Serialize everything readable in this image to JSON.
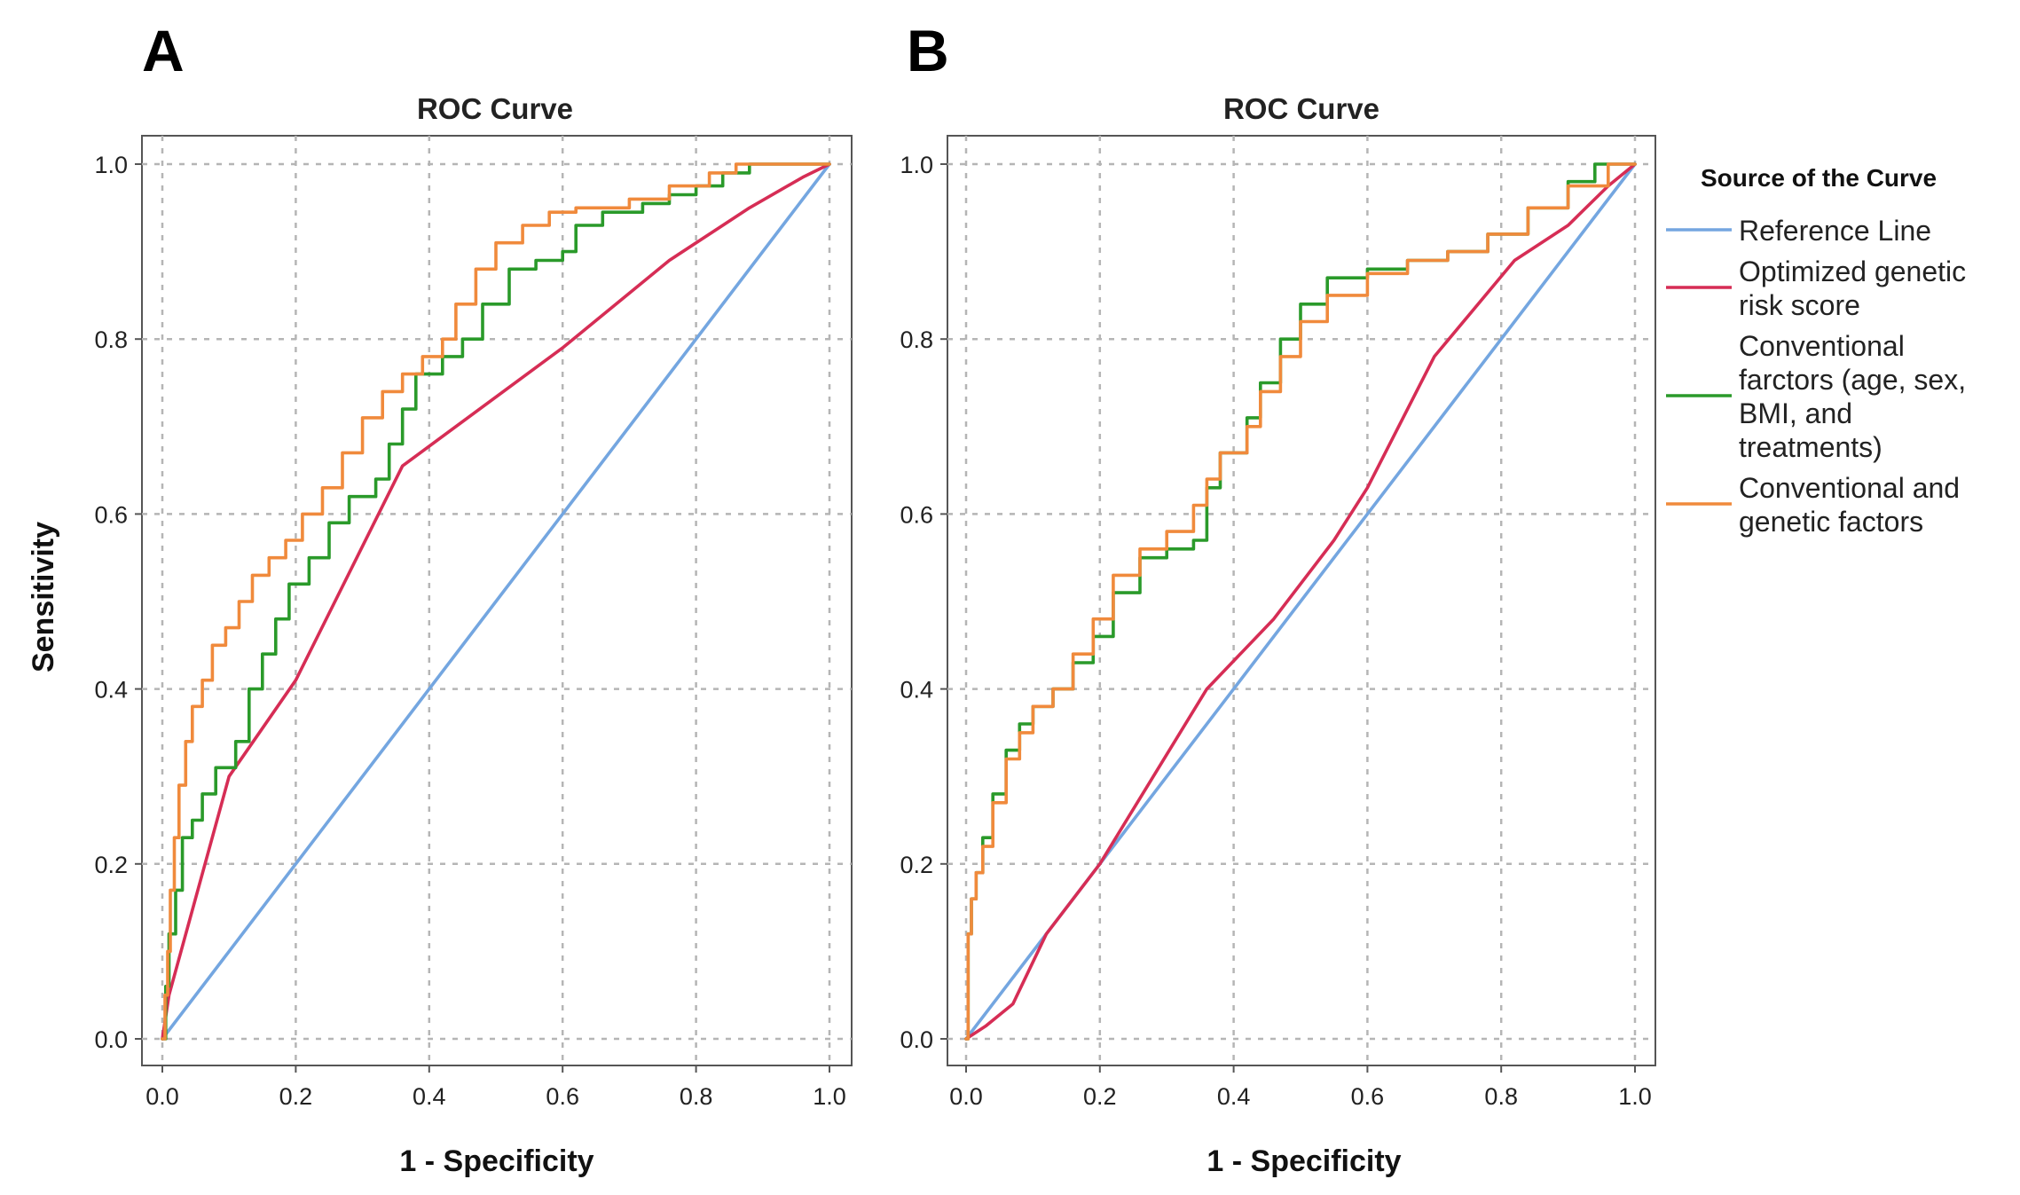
{
  "colors": {
    "reference": "#74a6e0",
    "genetic": "#d62d55",
    "conventional": "#2a9a2a",
    "combined": "#f08a3c"
  },
  "legend": {
    "title": "Source of the Curve",
    "entries": [
      {
        "series": "reference",
        "lines": [
          "Reference Line"
        ]
      },
      {
        "series": "genetic",
        "lines": [
          "Optimized genetic",
          "risk score"
        ]
      },
      {
        "series": "conventional",
        "lines": [
          "Conventional",
          "farctors (age, sex,",
          "BMI, and",
          "treatments)"
        ]
      },
      {
        "series": "combined",
        "lines": [
          "Conventional and",
          "genetic factors"
        ]
      }
    ]
  },
  "chart_data": [
    {
      "panel": "A",
      "type": "line",
      "title": "ROC Curve",
      "xlabel": "1 - Specificity",
      "ylabel": "Sensitivity",
      "xlim": [
        0,
        1
      ],
      "ylim": [
        0,
        1
      ],
      "xticks": [
        "0.0",
        "0.2",
        "0.4",
        "0.6",
        "0.8",
        "1.0"
      ],
      "yticks": [
        "0.0",
        "0.2",
        "0.4",
        "0.6",
        "0.8",
        "1.0"
      ],
      "grid": true,
      "series": [
        {
          "key": "reference",
          "name": "Reference Line",
          "x": [
            0,
            1
          ],
          "y": [
            0,
            1
          ]
        },
        {
          "key": "genetic",
          "name": "Optimized genetic risk score",
          "x": [
            0,
            0.01,
            0.1,
            0.2,
            0.36,
            0.6,
            0.76,
            0.88,
            0.96,
            1.0
          ],
          "y": [
            0,
            0.05,
            0.3,
            0.41,
            0.655,
            0.79,
            0.89,
            0.95,
            0.985,
            1.0
          ]
        },
        {
          "key": "conventional",
          "name": "Conventional farctors (age, sex, BMI, and treatments)",
          "step": true,
          "x": [
            0,
            0.005,
            0.01,
            0.02,
            0.03,
            0.045,
            0.06,
            0.08,
            0.11,
            0.13,
            0.15,
            0.17,
            0.19,
            0.22,
            0.25,
            0.28,
            0.32,
            0.34,
            0.36,
            0.38,
            0.42,
            0.45,
            0.48,
            0.52,
            0.56,
            0.6,
            0.62,
            0.66,
            0.72,
            0.76,
            0.8,
            0.84,
            0.88,
            1.0
          ],
          "y": [
            0,
            0.06,
            0.12,
            0.17,
            0.23,
            0.25,
            0.28,
            0.31,
            0.34,
            0.4,
            0.44,
            0.48,
            0.52,
            0.55,
            0.59,
            0.62,
            0.64,
            0.68,
            0.72,
            0.76,
            0.78,
            0.8,
            0.84,
            0.88,
            0.89,
            0.9,
            0.93,
            0.945,
            0.955,
            0.965,
            0.975,
            0.99,
            1.0,
            1.0
          ]
        },
        {
          "key": "combined",
          "name": "Conventional and genetic factors",
          "step": true,
          "x": [
            0,
            0.004,
            0.008,
            0.012,
            0.018,
            0.025,
            0.035,
            0.045,
            0.06,
            0.075,
            0.095,
            0.115,
            0.135,
            0.16,
            0.185,
            0.21,
            0.24,
            0.27,
            0.3,
            0.33,
            0.36,
            0.39,
            0.42,
            0.44,
            0.47,
            0.5,
            0.54,
            0.58,
            0.62,
            0.7,
            0.76,
            0.82,
            0.86,
            1.0
          ],
          "y": [
            0,
            0.05,
            0.1,
            0.17,
            0.23,
            0.29,
            0.34,
            0.38,
            0.41,
            0.45,
            0.47,
            0.5,
            0.53,
            0.55,
            0.57,
            0.6,
            0.63,
            0.67,
            0.71,
            0.74,
            0.76,
            0.78,
            0.8,
            0.84,
            0.88,
            0.91,
            0.93,
            0.945,
            0.95,
            0.96,
            0.975,
            0.99,
            1.0,
            1.0
          ]
        }
      ]
    },
    {
      "panel": "B",
      "type": "line",
      "title": "ROC Curve",
      "xlabel": "1 - Specificity",
      "ylabel": "",
      "xlim": [
        0,
        1
      ],
      "ylim": [
        0,
        1
      ],
      "xticks": [
        "0.0",
        "0.2",
        "0.4",
        "0.6",
        "0.8",
        "1.0"
      ],
      "yticks": [
        "0.0",
        "0.2",
        "0.4",
        "0.6",
        "0.8",
        "1.0"
      ],
      "grid": true,
      "series": [
        {
          "key": "reference",
          "name": "Reference Line",
          "x": [
            0,
            1
          ],
          "y": [
            0,
            1
          ]
        },
        {
          "key": "genetic",
          "name": "Optimized genetic risk score",
          "x": [
            0,
            0.03,
            0.07,
            0.12,
            0.2,
            0.26,
            0.36,
            0.46,
            0.55,
            0.6,
            0.7,
            0.82,
            0.9,
            0.96,
            1.0
          ],
          "y": [
            0,
            0.015,
            0.04,
            0.12,
            0.2,
            0.275,
            0.4,
            0.48,
            0.57,
            0.63,
            0.78,
            0.89,
            0.93,
            0.975,
            1.0
          ]
        },
        {
          "key": "conventional",
          "name": "Conventional farctors (age, sex, BMI, and treatments)",
          "step": true,
          "x": [
            0,
            0.003,
            0.008,
            0.015,
            0.025,
            0.04,
            0.06,
            0.08,
            0.1,
            0.13,
            0.16,
            0.19,
            0.22,
            0.26,
            0.3,
            0.34,
            0.36,
            0.38,
            0.42,
            0.44,
            0.47,
            0.5,
            0.54,
            0.6,
            0.66,
            0.72,
            0.78,
            0.84,
            0.9,
            0.94,
            1.0
          ],
          "y": [
            0,
            0.12,
            0.16,
            0.19,
            0.23,
            0.28,
            0.33,
            0.36,
            0.38,
            0.4,
            0.43,
            0.46,
            0.51,
            0.55,
            0.56,
            0.57,
            0.63,
            0.67,
            0.71,
            0.75,
            0.8,
            0.84,
            0.87,
            0.88,
            0.89,
            0.9,
            0.92,
            0.95,
            0.98,
            1.0,
            1.0
          ]
        },
        {
          "key": "combined",
          "name": "Conventional and genetic factors",
          "step": true,
          "x": [
            0,
            0.003,
            0.008,
            0.015,
            0.025,
            0.04,
            0.06,
            0.08,
            0.1,
            0.13,
            0.16,
            0.19,
            0.22,
            0.26,
            0.3,
            0.34,
            0.36,
            0.38,
            0.42,
            0.44,
            0.47,
            0.5,
            0.54,
            0.6,
            0.66,
            0.72,
            0.78,
            0.84,
            0.9,
            0.96,
            1.0
          ],
          "y": [
            0,
            0.12,
            0.16,
            0.19,
            0.22,
            0.27,
            0.32,
            0.35,
            0.38,
            0.4,
            0.44,
            0.48,
            0.53,
            0.56,
            0.58,
            0.61,
            0.64,
            0.67,
            0.7,
            0.74,
            0.78,
            0.82,
            0.85,
            0.875,
            0.89,
            0.9,
            0.92,
            0.95,
            0.975,
            1.0,
            1.0
          ]
        }
      ]
    }
  ]
}
